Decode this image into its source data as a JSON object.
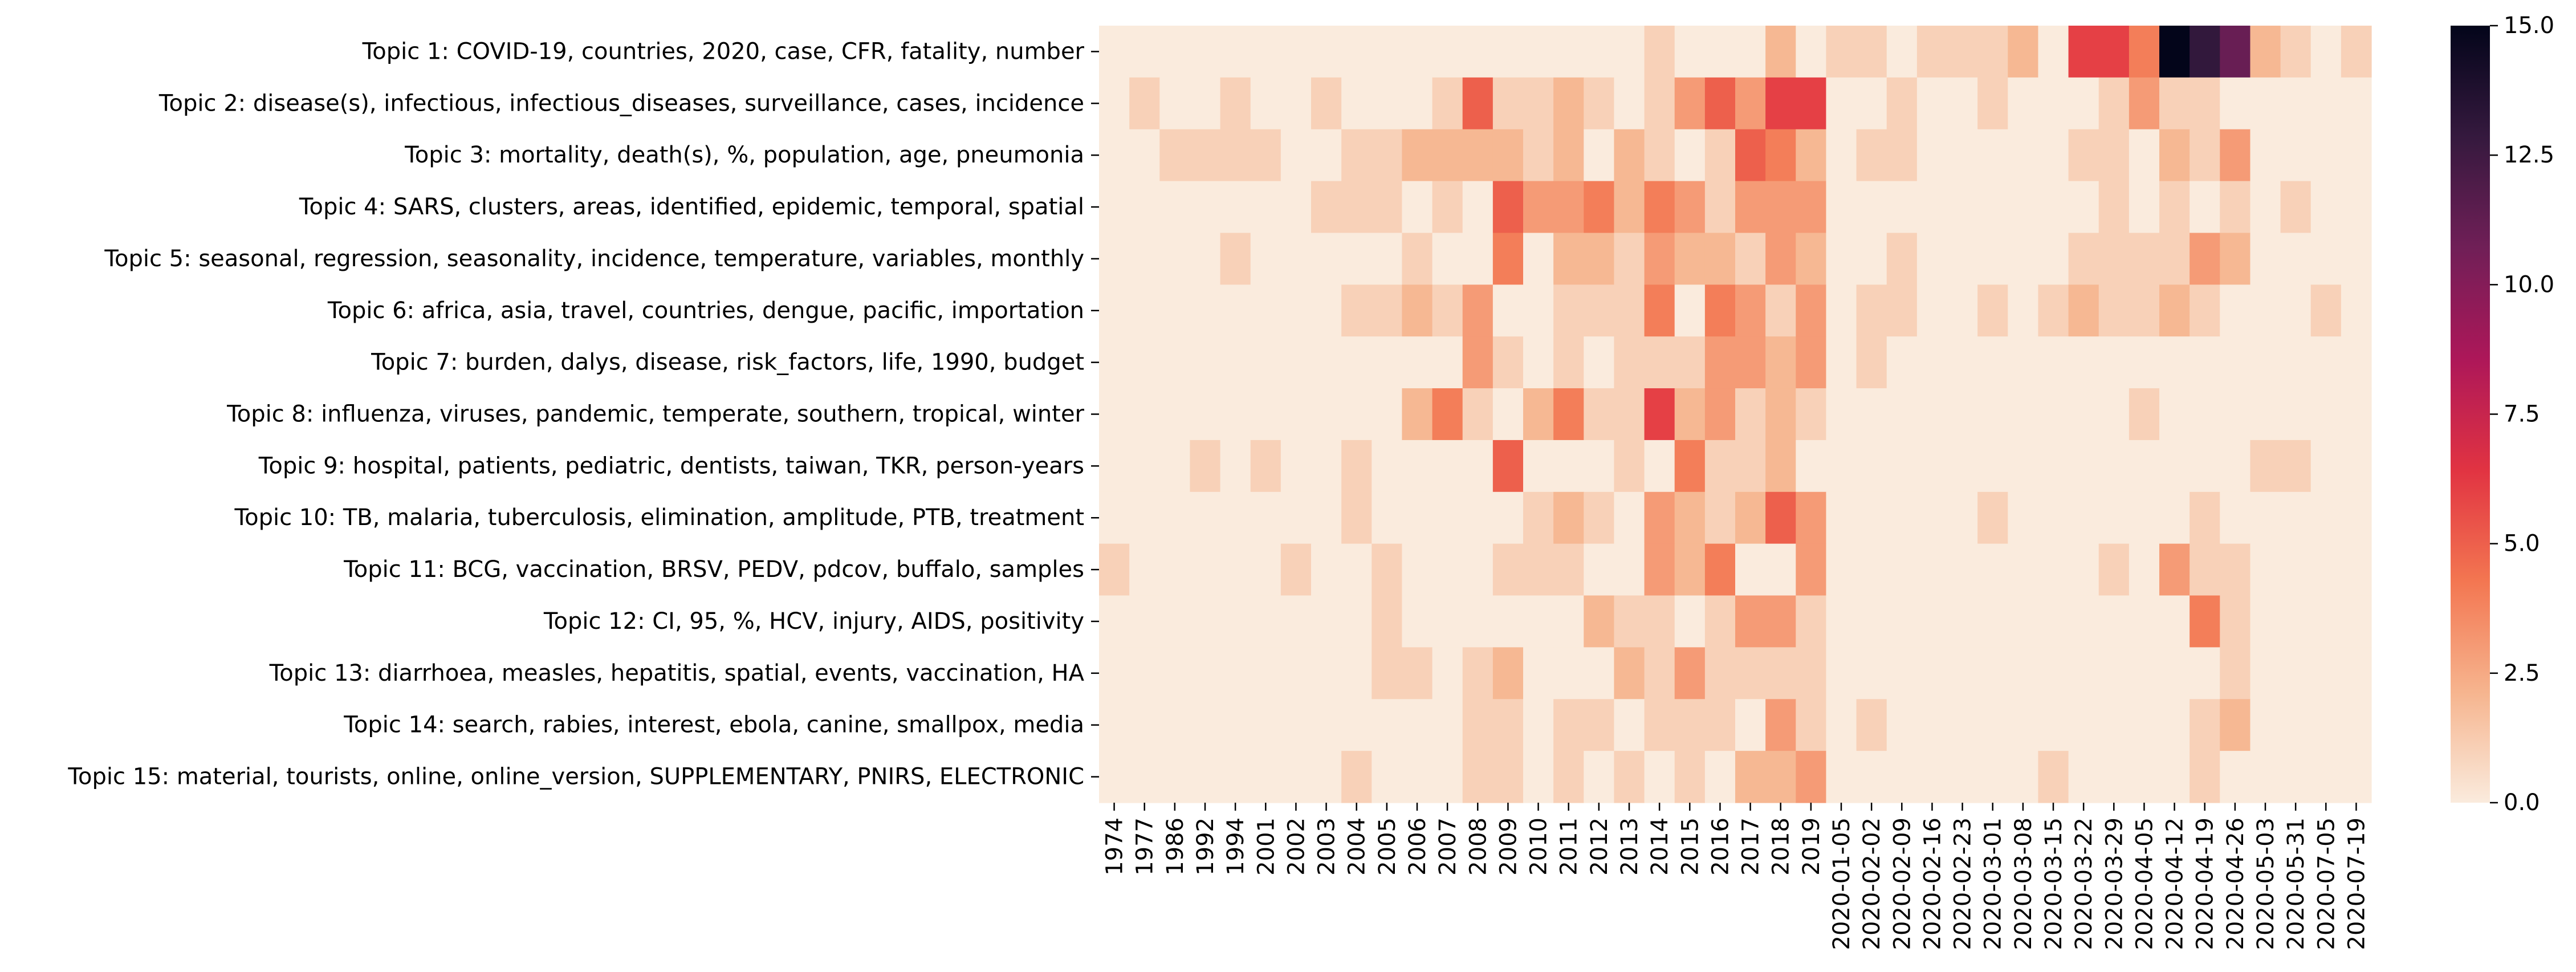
{
  "chart_data": {
    "type": "heatmap",
    "title": "",
    "xlabel": "",
    "ylabel": "",
    "y_labels": [
      "Topic 1: COVID-19, countries, 2020, case, CFR, fatality, number",
      "Topic 2: disease(s), infectious, infectious_diseases, surveillance, cases, incidence",
      "Topic 3: mortality, death(s), %, population, age, pneumonia",
      "Topic 4: SARS, clusters, areas, identified, epidemic, temporal, spatial",
      "Topic 5: seasonal, regression, seasonality, incidence, temperature, variables, monthly",
      "Topic 6: africa, asia, travel, countries, dengue, pacific, importation",
      "Topic 7: burden, dalys, disease, risk_factors, life, 1990, budget",
      "Topic 8: influenza, viruses, pandemic, temperate, southern, tropical, winter",
      "Topic 9: hospital, patients, pediatric, dentists, taiwan, TKR, person-years",
      "Topic 10: TB, malaria, tuberculosis, elimination, amplitude, PTB, treatment",
      "Topic 11: BCG, vaccination, BRSV, PEDV, pdcov, buffalo, samples",
      "Topic 12: CI, 95, %, HCV, injury, AIDS, positivity",
      "Topic 13: diarrhoea, measles, hepatitis, spatial, events, vaccination, HA",
      "Topic 14: search, rabies, interest, ebola, canine, smallpox, media",
      "Topic 15: material, tourists, online, online_version, SUPPLEMENTARY, PNIRS, ELECTRONIC"
    ],
    "x_labels": [
      "1974",
      "1977",
      "1986",
      "1992",
      "1994",
      "2001",
      "2002",
      "2003",
      "2004",
      "2005",
      "2006",
      "2007",
      "2008",
      "2009",
      "2010",
      "2011",
      "2012",
      "2013",
      "2014",
      "2015",
      "2016",
      "2017",
      "2018",
      "2019",
      "2020-01-05",
      "2020-02-02",
      "2020-02-09",
      "2020-02-16",
      "2020-02-23",
      "2020-03-01",
      "2020-03-08",
      "2020-03-15",
      "2020-03-22",
      "2020-03-29",
      "2020-04-05",
      "2020-04-12",
      "2020-04-19",
      "2020-04-26",
      "2020-05-03",
      "2020-05-31",
      "2020-07-05",
      "2020-07-19"
    ],
    "values": [
      [
        0,
        0,
        0,
        0,
        0,
        0,
        0,
        0,
        0,
        0,
        0,
        0,
        0,
        0,
        0,
        0,
        0,
        0,
        1,
        0,
        0,
        0,
        2,
        0,
        1,
        1,
        0,
        1,
        1,
        1,
        2,
        0,
        6,
        6,
        4,
        15,
        13,
        11,
        2,
        1,
        0,
        1
      ],
      [
        0,
        1,
        0,
        0,
        1,
        0,
        0,
        1,
        0,
        0,
        0,
        1,
        5,
        1,
        1,
        2,
        1,
        0,
        1,
        3,
        5,
        3,
        6,
        6,
        0,
        0,
        1,
        0,
        0,
        1,
        0,
        0,
        0,
        1,
        3,
        1,
        1,
        0,
        0,
        0,
        0,
        0
      ],
      [
        0,
        0,
        1,
        1,
        1,
        1,
        0,
        0,
        1,
        1,
        2,
        2,
        2,
        2,
        1,
        2,
        0,
        2,
        1,
        0,
        1,
        5,
        4,
        2,
        0,
        1,
        1,
        0,
        0,
        0,
        0,
        0,
        1,
        1,
        0,
        2,
        1,
        3,
        0,
        0,
        0,
        0
      ],
      [
        0,
        0,
        0,
        0,
        0,
        0,
        0,
        1,
        1,
        1,
        0,
        1,
        0,
        5,
        3,
        3,
        4,
        2,
        4,
        3,
        1,
        3,
        3,
        3,
        0,
        0,
        0,
        0,
        0,
        0,
        0,
        0,
        0,
        1,
        0,
        1,
        0,
        1,
        0,
        1,
        0,
        0
      ],
      [
        0,
        0,
        0,
        0,
        1,
        0,
        0,
        0,
        0,
        0,
        1,
        0,
        0,
        4,
        0,
        2,
        2,
        1,
        3,
        2,
        2,
        1,
        3,
        2,
        0,
        0,
        1,
        0,
        0,
        0,
        0,
        0,
        1,
        1,
        1,
        1,
        3,
        2,
        0,
        0,
        0,
        0
      ],
      [
        0,
        0,
        0,
        0,
        0,
        0,
        0,
        0,
        1,
        1,
        2,
        1,
        3,
        0,
        0,
        1,
        1,
        1,
        4,
        0,
        4,
        3,
        1,
        3,
        0,
        1,
        1,
        0,
        0,
        1,
        0,
        1,
        2,
        1,
        1,
        2,
        1,
        0,
        0,
        0,
        1,
        0
      ],
      [
        0,
        0,
        0,
        0,
        0,
        0,
        0,
        0,
        0,
        0,
        0,
        0,
        3,
        1,
        0,
        1,
        0,
        1,
        1,
        1,
        3,
        3,
        2,
        3,
        0,
        1,
        0,
        0,
        0,
        0,
        0,
        0,
        0,
        0,
        0,
        0,
        0,
        0,
        0,
        0,
        0,
        0
      ],
      [
        0,
        0,
        0,
        0,
        0,
        0,
        0,
        0,
        0,
        0,
        2,
        4,
        1,
        0,
        2,
        4,
        1,
        1,
        6,
        2,
        3,
        1,
        2,
        1,
        0,
        0,
        0,
        0,
        0,
        0,
        0,
        0,
        0,
        0,
        1,
        0,
        0,
        0,
        0,
        0,
        0,
        0
      ],
      [
        0,
        0,
        0,
        1,
        0,
        1,
        0,
        0,
        1,
        0,
        0,
        0,
        0,
        5,
        0,
        0,
        0,
        1,
        0,
        4,
        1,
        1,
        2,
        0,
        0,
        0,
        0,
        0,
        0,
        0,
        0,
        0,
        0,
        0,
        0,
        0,
        0,
        0,
        1,
        1,
        0,
        0
      ],
      [
        0,
        0,
        0,
        0,
        0,
        0,
        0,
        0,
        1,
        0,
        0,
        0,
        0,
        0,
        1,
        2,
        1,
        0,
        3,
        2,
        1,
        2,
        5,
        3,
        0,
        0,
        0,
        0,
        0,
        1,
        0,
        0,
        0,
        0,
        0,
        0,
        1,
        0,
        0,
        0,
        0,
        0
      ],
      [
        1,
        0,
        0,
        0,
        0,
        0,
        1,
        0,
        0,
        1,
        0,
        0,
        0,
        1,
        1,
        1,
        0,
        0,
        3,
        2,
        4,
        0,
        0,
        3,
        0,
        0,
        0,
        0,
        0,
        0,
        0,
        0,
        0,
        1,
        0,
        3,
        1,
        1,
        0,
        0,
        0,
        0
      ],
      [
        0,
        0,
        0,
        0,
        0,
        0,
        0,
        0,
        0,
        1,
        0,
        0,
        0,
        0,
        0,
        0,
        2,
        1,
        1,
        0,
        1,
        3,
        3,
        1,
        0,
        0,
        0,
        0,
        0,
        0,
        0,
        0,
        0,
        0,
        0,
        0,
        4,
        1,
        0,
        0,
        0,
        0
      ],
      [
        0,
        0,
        0,
        0,
        0,
        0,
        0,
        0,
        0,
        1,
        1,
        0,
        1,
        2,
        0,
        0,
        0,
        2,
        1,
        3,
        1,
        1,
        1,
        1,
        0,
        0,
        0,
        0,
        0,
        0,
        0,
        0,
        0,
        0,
        0,
        0,
        0,
        1,
        0,
        0,
        0,
        0
      ],
      [
        0,
        0,
        0,
        0,
        0,
        0,
        0,
        0,
        0,
        0,
        0,
        0,
        1,
        1,
        0,
        1,
        1,
        0,
        1,
        1,
        1,
        0,
        3,
        1,
        0,
        1,
        0,
        0,
        0,
        0,
        0,
        0,
        0,
        0,
        0,
        0,
        1,
        2,
        0,
        0,
        0,
        0
      ],
      [
        0,
        0,
        0,
        0,
        0,
        0,
        0,
        0,
        1,
        0,
        0,
        0,
        1,
        1,
        0,
        1,
        0,
        1,
        0,
        1,
        0,
        2,
        2,
        3,
        0,
        0,
        0,
        0,
        0,
        0,
        0,
        1,
        0,
        0,
        0,
        0,
        1,
        0,
        0,
        0,
        0,
        0
      ]
    ],
    "colorbar": {
      "range": [
        0,
        15
      ],
      "ticks": [
        0,
        2.5,
        5,
        7.5,
        10,
        12.5,
        15
      ],
      "tick_labels": [
        "0.0",
        "2.5",
        "5.0",
        "7.5",
        "10.0",
        "12.5",
        "15.0"
      ],
      "colormap": "rocket_r",
      "stops": [
        "#faebdd",
        "#f6b48e",
        "#f37651",
        "#e13342",
        "#ad1759",
        "#701f57",
        "#35193e",
        "#03051a"
      ]
    }
  }
}
